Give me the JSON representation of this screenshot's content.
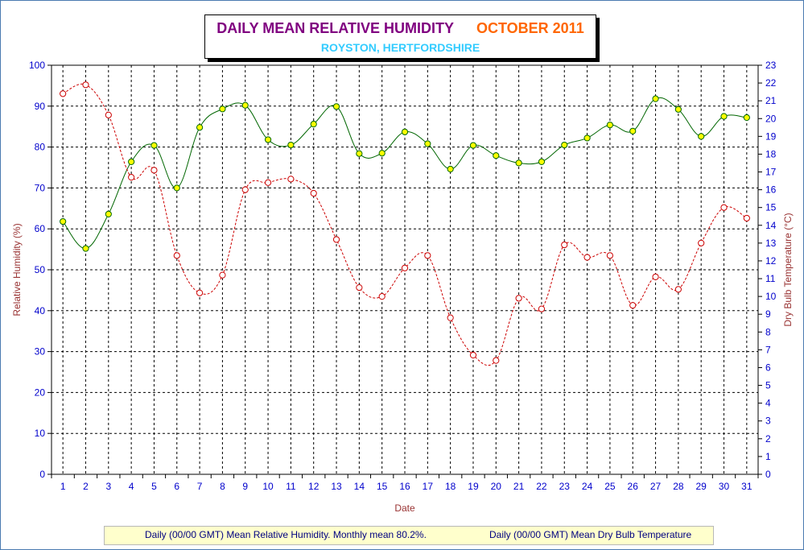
{
  "chart_data": {
    "type": "line",
    "title": "DAILY MEAN RELATIVE HUMIDITY",
    "title_period": "OCTOBER 2011",
    "subtitle": "ROYSTON, HERTFORDSHIRE",
    "xlabel": "Date",
    "ylabel": "Relative Humidity (%)",
    "y2label": "Dry Bulb Temperature (°C)",
    "x": [
      1,
      2,
      3,
      4,
      5,
      6,
      7,
      8,
      9,
      10,
      11,
      12,
      13,
      14,
      15,
      16,
      17,
      18,
      19,
      20,
      21,
      22,
      23,
      24,
      25,
      26,
      27,
      28,
      29,
      30,
      31
    ],
    "ylim": [
      0,
      100
    ],
    "y_ticks": [
      0,
      10,
      20,
      30,
      40,
      50,
      60,
      70,
      80,
      90,
      100
    ],
    "y2lim": [
      0,
      23
    ],
    "y2_ticks": [
      0,
      1,
      2,
      3,
      4,
      5,
      6,
      7,
      8,
      9,
      10,
      11,
      12,
      13,
      14,
      15,
      16,
      17,
      18,
      19,
      20,
      21,
      22,
      23
    ],
    "grid": true,
    "legend_position": "bottom",
    "series": [
      {
        "name": "Daily (00/00 GMT) Mean Relative Humidity. Monthly mean 80.2%.",
        "axis": "left",
        "color": "#006600",
        "marker_color": "#ffff00",
        "values": [
          61.8,
          55.2,
          63.6,
          76.4,
          80.4,
          70.0,
          84.8,
          89.3,
          90.2,
          81.8,
          80.5,
          85.6,
          89.9,
          78.4,
          78.5,
          83.7,
          80.8,
          74.6,
          80.4,
          77.9,
          76.1,
          76.4,
          80.5,
          82.2,
          85.4,
          83.9,
          91.8,
          89.2,
          82.6,
          87.5,
          87.2
        ]
      },
      {
        "name": "Daily (00/00 GMT) Mean Dry Bulb Temperature",
        "axis": "right",
        "color": "#cc0000",
        "marker_color": "#ffffff",
        "values": [
          21.4,
          21.9,
          20.2,
          16.7,
          17.1,
          12.3,
          10.2,
          11.2,
          16.0,
          16.4,
          16.6,
          15.8,
          13.2,
          10.5,
          10.0,
          11.6,
          12.3,
          8.8,
          6.7,
          6.4,
          9.9,
          9.3,
          12.9,
          12.2,
          12.3,
          9.5,
          11.1,
          10.4,
          13.0,
          15.0,
          14.4
        ]
      }
    ],
    "colors": {
      "left_axis_labels": "#0000cc",
      "left_axis_title": "#993333",
      "right_axis_labels": "#0000cc",
      "right_axis_title": "#993333",
      "xlabel": "#993333",
      "x_tick_labels": "#0000cc",
      "legend_text": "#000080",
      "legend_bg": "#ffffcc"
    }
  }
}
